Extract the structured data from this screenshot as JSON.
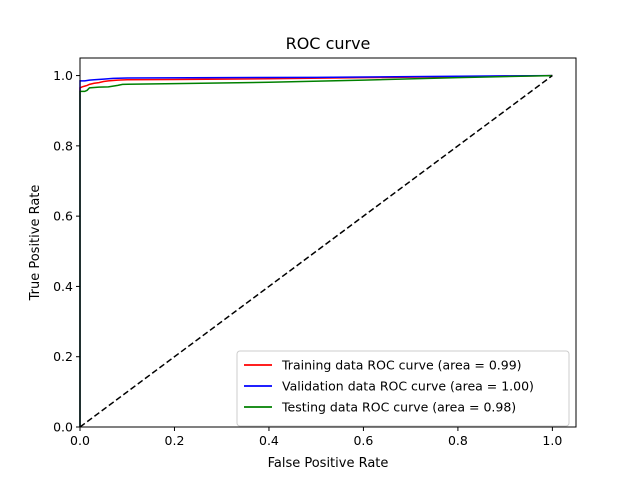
{
  "chart_data": {
    "type": "line",
    "title": "ROC curve",
    "xlabel": "False Positive Rate",
    "ylabel": "True Positive Rate",
    "xlim": [
      0,
      1.05
    ],
    "ylim": [
      0,
      1.05
    ],
    "xticks": [
      0.0,
      0.2,
      0.4,
      0.6,
      0.8,
      1.0
    ],
    "yticks": [
      0.0,
      0.2,
      0.4,
      0.6,
      0.8,
      1.0
    ],
    "xtick_labels": [
      "0.0",
      "0.2",
      "0.4",
      "0.6",
      "0.8",
      "1.0"
    ],
    "ytick_labels": [
      "0.0",
      "0.2",
      "0.4",
      "0.6",
      "0.8",
      "1.0"
    ],
    "grid": false,
    "legend_position": "lower-right",
    "series": [
      {
        "name": "Training data ROC curve (area = 0.99)",
        "color": "#ff0000",
        "style": "solid",
        "x": [
          0,
          0,
          0.005,
          0.01,
          0.015,
          0.02,
          0.03,
          0.04,
          0.05,
          0.06,
          0.08,
          0.1,
          0.2,
          0.4,
          0.6,
          0.8,
          1.0
        ],
        "y": [
          0,
          0.965,
          0.968,
          0.97,
          0.972,
          0.975,
          0.978,
          0.98,
          0.983,
          0.985,
          0.987,
          0.988,
          0.989,
          0.991,
          0.994,
          0.997,
          1.0
        ]
      },
      {
        "name": "Validation data ROC curve (area = 1.00)",
        "color": "#0000ff",
        "style": "solid",
        "x": [
          0,
          0,
          0.01,
          0.02,
          0.03,
          0.05,
          0.07,
          0.1,
          0.3,
          0.5,
          0.7,
          0.9,
          1.0
        ],
        "y": [
          0,
          0.985,
          0.985,
          0.987,
          0.988,
          0.99,
          0.992,
          0.993,
          0.994,
          0.995,
          0.997,
          0.999,
          1.0
        ]
      },
      {
        "name": "Testing data ROC curve (area = 0.98)",
        "color": "#008000",
        "style": "solid",
        "x": [
          0,
          0,
          0.01,
          0.015,
          0.02,
          0.04,
          0.06,
          0.08,
          0.09,
          0.2,
          0.4,
          0.6,
          0.8,
          1.0
        ],
        "y": [
          0,
          0.955,
          0.955,
          0.958,
          0.965,
          0.967,
          0.968,
          0.972,
          0.975,
          0.977,
          0.981,
          0.987,
          0.994,
          1.0
        ]
      },
      {
        "color": "#000000",
        "style": "dashed",
        "x": [
          0,
          1
        ],
        "y": [
          0,
          1
        ]
      }
    ]
  }
}
